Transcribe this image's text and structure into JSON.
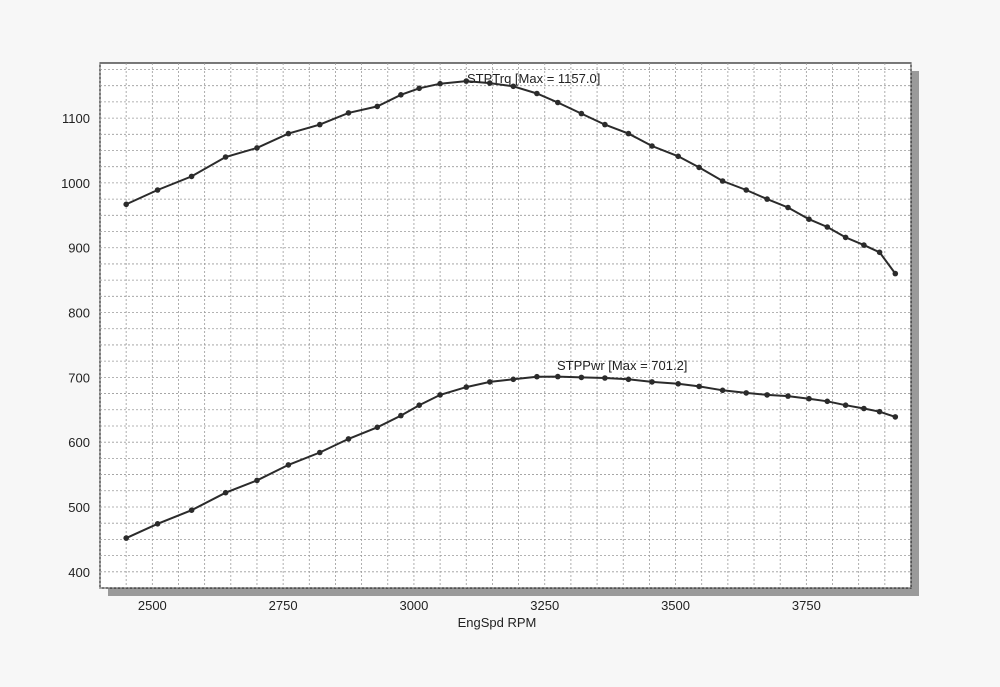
{
  "chart_data": {
    "type": "line",
    "title": "",
    "xlabel": "EngSpd  RPM",
    "ylabel": "",
    "xlim": [
      2400,
      3950
    ],
    "ylim": [
      375,
      1185
    ],
    "x_ticks": [
      2500,
      2750,
      3000,
      3250,
      3500,
      3750
    ],
    "y_ticks": [
      400,
      500,
      600,
      700,
      800,
      900,
      1000,
      1100
    ],
    "x_minor_step": 50,
    "y_minor_step": 25,
    "grid": true,
    "legend": "none",
    "colors": {
      "series": "#2b2b2b",
      "grid": "#9a9a9a",
      "frame": "#222222",
      "shadow": "#9a9a9a",
      "plot_bg": "#ffffff"
    },
    "annotations": [
      "STPTrq [Max = 1157.0]",
      "STPPwr [Max = 701.2]"
    ],
    "x": [
      2450,
      2510,
      2575,
      2640,
      2700,
      2760,
      2820,
      2875,
      2930,
      2975,
      3010,
      3050,
      3100,
      3145,
      3190,
      3235,
      3275,
      3320,
      3365,
      3410,
      3455,
      3505,
      3545,
      3590,
      3635,
      3675,
      3715,
      3755,
      3790,
      3825,
      3860,
      3890,
      3920
    ],
    "series": [
      {
        "name": "STPTrq",
        "values": [
          967,
          989,
          1010,
          1040,
          1054,
          1076,
          1090,
          1108,
          1118,
          1136,
          1146,
          1153,
          1157,
          1154,
          1149,
          1138,
          1124,
          1107,
          1090,
          1076,
          1057,
          1041,
          1024,
          1003,
          989,
          975,
          962,
          944,
          932,
          916,
          904,
          893,
          860
        ]
      },
      {
        "name": "STPPwr",
        "values": [
          452,
          474,
          495,
          522,
          541,
          565,
          584,
          605,
          623,
          641,
          657,
          673,
          685,
          693,
          697,
          701,
          701.2,
          700,
          699,
          697,
          693,
          690,
          686,
          680,
          676,
          673,
          671,
          667,
          663,
          657,
          652,
          647,
          639
        ]
      }
    ]
  }
}
